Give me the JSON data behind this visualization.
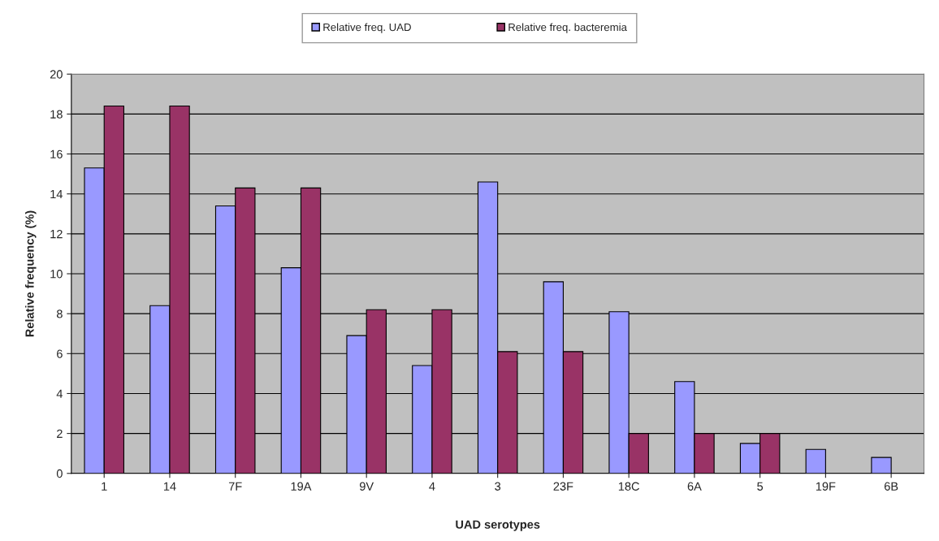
{
  "chart_data": {
    "type": "bar",
    "xlabel": "UAD serotypes",
    "ylabel": "Relative frequency (%)",
    "categories": [
      "1",
      "14",
      "7F",
      "19A",
      "9V",
      "4",
      "3",
      "23F",
      "18C",
      "6A",
      "5",
      "19F",
      "6B"
    ],
    "series": [
      {
        "name": "Relative freq. UAD",
        "color": "#9999ff",
        "values": [
          15.3,
          8.4,
          13.4,
          10.3,
          6.9,
          5.4,
          14.6,
          9.6,
          8.1,
          4.6,
          1.5,
          1.2,
          0.8
        ]
      },
      {
        "name": "Relative freq. bacteremia",
        "color": "#993366",
        "values": [
          18.4,
          18.4,
          14.3,
          14.3,
          8.2,
          8.2,
          6.1,
          6.1,
          2.0,
          2.0,
          2.0,
          null,
          null
        ]
      }
    ],
    "ylim": [
      0,
      20
    ],
    "yticks": [
      0,
      2,
      4,
      6,
      8,
      10,
      12,
      14,
      16,
      18,
      20
    ],
    "grid": "y",
    "legend": "top"
  }
}
